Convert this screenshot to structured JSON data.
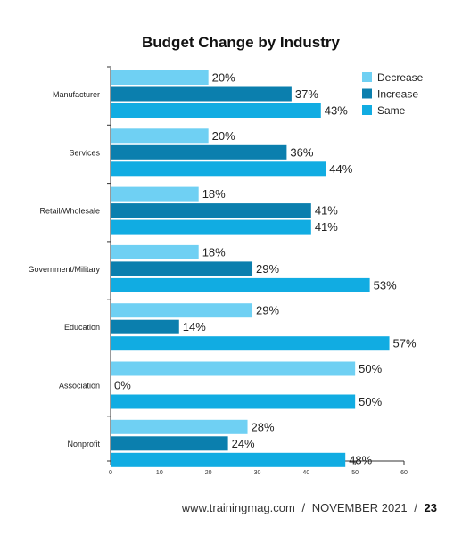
{
  "chart_data": {
    "type": "bar",
    "orientation": "horizontal",
    "title": "Budget Change by Industry",
    "categories": [
      "Manufacturer",
      "Services",
      "Retail/Wholesale",
      "Government/Military",
      "Education",
      "Association",
      "Nonprofit"
    ],
    "series": [
      {
        "name": "Decrease",
        "color": "#6fd0f3",
        "values": [
          20,
          20,
          18,
          18,
          29,
          50,
          28
        ]
      },
      {
        "name": "Increase",
        "color": "#0b7fae",
        "values": [
          37,
          36,
          41,
          29,
          14,
          0,
          24
        ]
      },
      {
        "name": "Same",
        "color": "#11ace2",
        "values": [
          43,
          44,
          41,
          53,
          57,
          50,
          48
        ]
      }
    ],
    "value_suffix": "%",
    "xlim": [
      0,
      60
    ],
    "xticks": [
      0,
      10,
      20,
      30,
      40,
      50,
      60
    ],
    "xlabel": "",
    "ylabel": "",
    "grid": false,
    "legend_position": "top-right"
  },
  "footer": {
    "site": "www.trainingmag.com",
    "separator": "/",
    "issue": "NOVEMBER 2021",
    "page_number": "23"
  }
}
